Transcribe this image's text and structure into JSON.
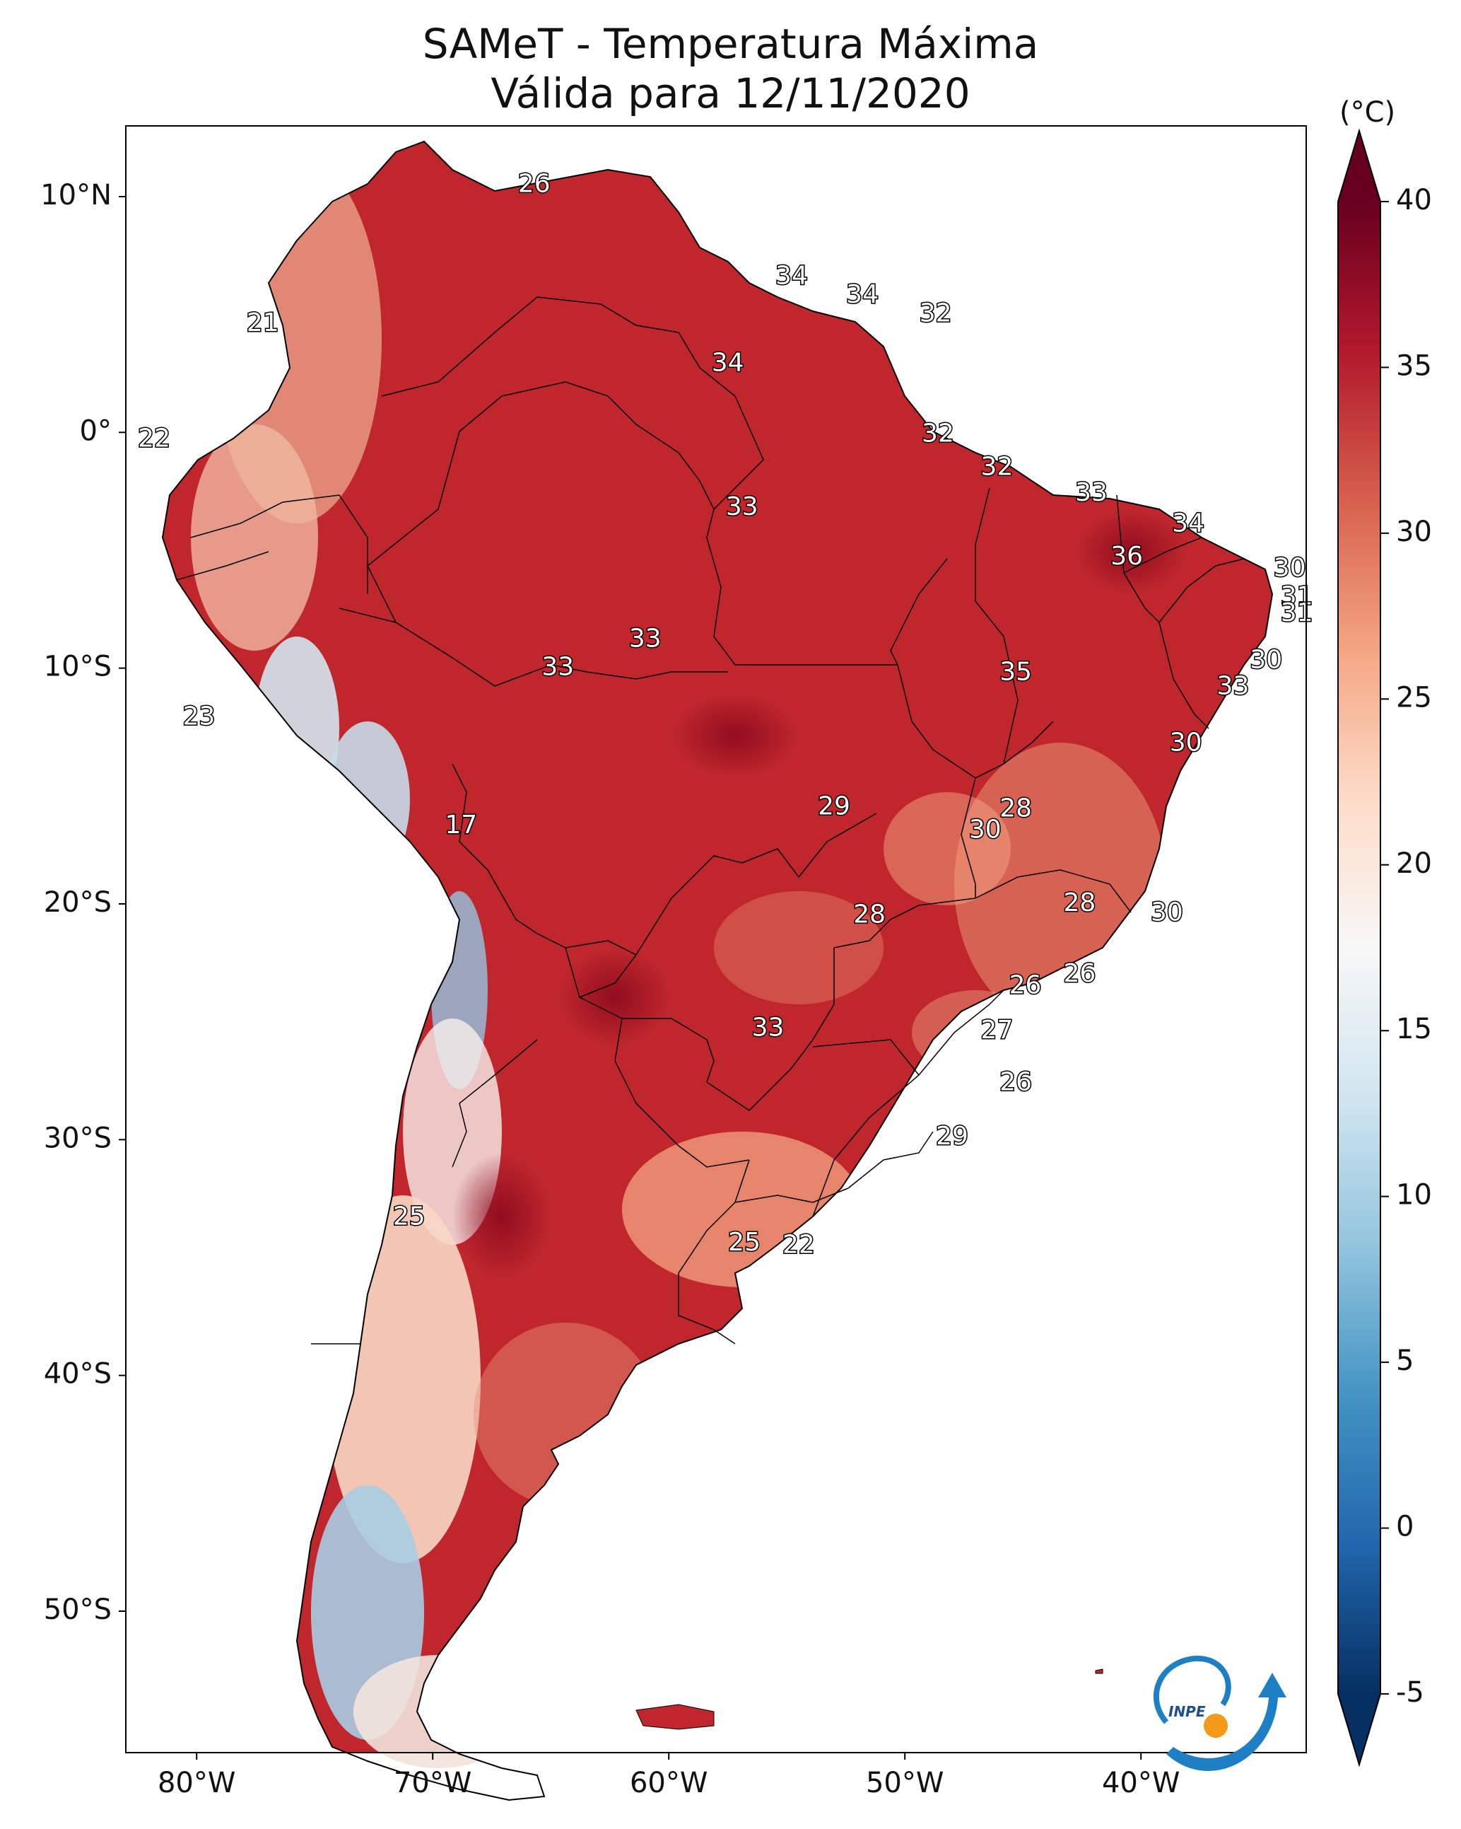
{
  "title": {
    "line1": "SAMeT - Temperatura Máxima",
    "line2": "Válida para 12/11/2020"
  },
  "map": {
    "lon_range": [
      -83,
      -33
    ],
    "lat_range": [
      -56,
      13
    ],
    "x_ticks": [
      {
        "lon": -80,
        "label": "80°W"
      },
      {
        "lon": -70,
        "label": "70°W"
      },
      {
        "lon": -60,
        "label": "60°W"
      },
      {
        "lon": -50,
        "label": "50°W"
      },
      {
        "lon": -40,
        "label": "40°W"
      }
    ],
    "y_ticks": [
      {
        "lat": 10,
        "label": "10°N"
      },
      {
        "lat": 0,
        "label": "0°"
      },
      {
        "lat": -10,
        "label": "10°S"
      },
      {
        "lat": -20,
        "label": "20°S"
      },
      {
        "lat": -30,
        "label": "30°S"
      },
      {
        "lat": -40,
        "label": "40°S"
      },
      {
        "lat": -50,
        "label": "50°S"
      }
    ],
    "labels": [
      {
        "lon": -65.7,
        "lat": 10.5,
        "value": "26"
      },
      {
        "lon": -54.8,
        "lat": 6.6,
        "value": "34"
      },
      {
        "lon": -51.8,
        "lat": 5.8,
        "value": "34"
      },
      {
        "lon": -48.7,
        "lat": 5.0,
        "value": "32"
      },
      {
        "lon": -57.5,
        "lat": 2.9,
        "value": "34"
      },
      {
        "lon": -77.2,
        "lat": 4.6,
        "value": "21"
      },
      {
        "lon": -81.8,
        "lat": -0.3,
        "value": "22"
      },
      {
        "lon": -48.6,
        "lat": -0.1,
        "value": "32"
      },
      {
        "lon": -46.1,
        "lat": -1.5,
        "value": "32"
      },
      {
        "lon": -56.9,
        "lat": -3.2,
        "value": "33"
      },
      {
        "lon": -42.1,
        "lat": -2.6,
        "value": "33"
      },
      {
        "lon": -38.0,
        "lat": -3.9,
        "value": "34"
      },
      {
        "lon": -40.6,
        "lat": -5.3,
        "value": "36"
      },
      {
        "lon": -33.7,
        "lat": -5.8,
        "value": "30"
      },
      {
        "lon": -33.4,
        "lat": -7.0,
        "value": "31"
      },
      {
        "lon": -33.4,
        "lat": -7.7,
        "value": "31"
      },
      {
        "lon": -61.0,
        "lat": -8.8,
        "value": "33"
      },
      {
        "lon": -64.7,
        "lat": -10.0,
        "value": "33"
      },
      {
        "lon": -45.3,
        "lat": -10.2,
        "value": "35"
      },
      {
        "lon": -34.7,
        "lat": -9.7,
        "value": "30"
      },
      {
        "lon": -36.1,
        "lat": -10.8,
        "value": "33"
      },
      {
        "lon": -79.9,
        "lat": -12.1,
        "value": "23"
      },
      {
        "lon": -38.1,
        "lat": -13.2,
        "value": "30"
      },
      {
        "lon": -68.8,
        "lat": -16.7,
        "value": "17"
      },
      {
        "lon": -53.0,
        "lat": -15.9,
        "value": "29"
      },
      {
        "lon": -45.3,
        "lat": -16.0,
        "value": "28"
      },
      {
        "lon": -46.6,
        "lat": -16.9,
        "value": "30"
      },
      {
        "lon": -51.5,
        "lat": -20.5,
        "value": "28"
      },
      {
        "lon": -42.6,
        "lat": -20.0,
        "value": "28"
      },
      {
        "lon": -38.9,
        "lat": -20.4,
        "value": "30"
      },
      {
        "lon": -42.6,
        "lat": -23.0,
        "value": "26"
      },
      {
        "lon": -44.9,
        "lat": -23.5,
        "value": "26"
      },
      {
        "lon": -55.8,
        "lat": -25.3,
        "value": "33"
      },
      {
        "lon": -46.1,
        "lat": -25.4,
        "value": "27"
      },
      {
        "lon": -45.3,
        "lat": -27.6,
        "value": "26"
      },
      {
        "lon": -48.0,
        "lat": -29.9,
        "value": "29"
      },
      {
        "lon": -71.0,
        "lat": -33.3,
        "value": "25"
      },
      {
        "lon": -56.8,
        "lat": -34.4,
        "value": "25"
      },
      {
        "lon": -54.5,
        "lat": -34.5,
        "value": "22"
      }
    ]
  },
  "colorbar": {
    "unit": "(°C)",
    "vmin": -5,
    "vmax": 40,
    "ticks": [
      {
        "value": 40,
        "label": "40"
      },
      {
        "value": 35,
        "label": "35"
      },
      {
        "value": 30,
        "label": "30"
      },
      {
        "value": 25,
        "label": "25"
      },
      {
        "value": 20,
        "label": "20"
      },
      {
        "value": 15,
        "label": "15"
      },
      {
        "value": 10,
        "label": "10"
      },
      {
        "value": 5,
        "label": "5"
      },
      {
        "value": 0,
        "label": "0"
      },
      {
        "value": -5,
        "label": "-5"
      }
    ],
    "colors": [
      "#053061",
      "#2166ac",
      "#4393c3",
      "#92c5de",
      "#d1e5f0",
      "#f7f7f7",
      "#fddbc7",
      "#f4a582",
      "#d6604d",
      "#b2182b",
      "#67001f"
    ]
  },
  "logo": {
    "text": "INPE",
    "color_blue": "#1f7fc4",
    "color_orange": "#f39a1a"
  }
}
